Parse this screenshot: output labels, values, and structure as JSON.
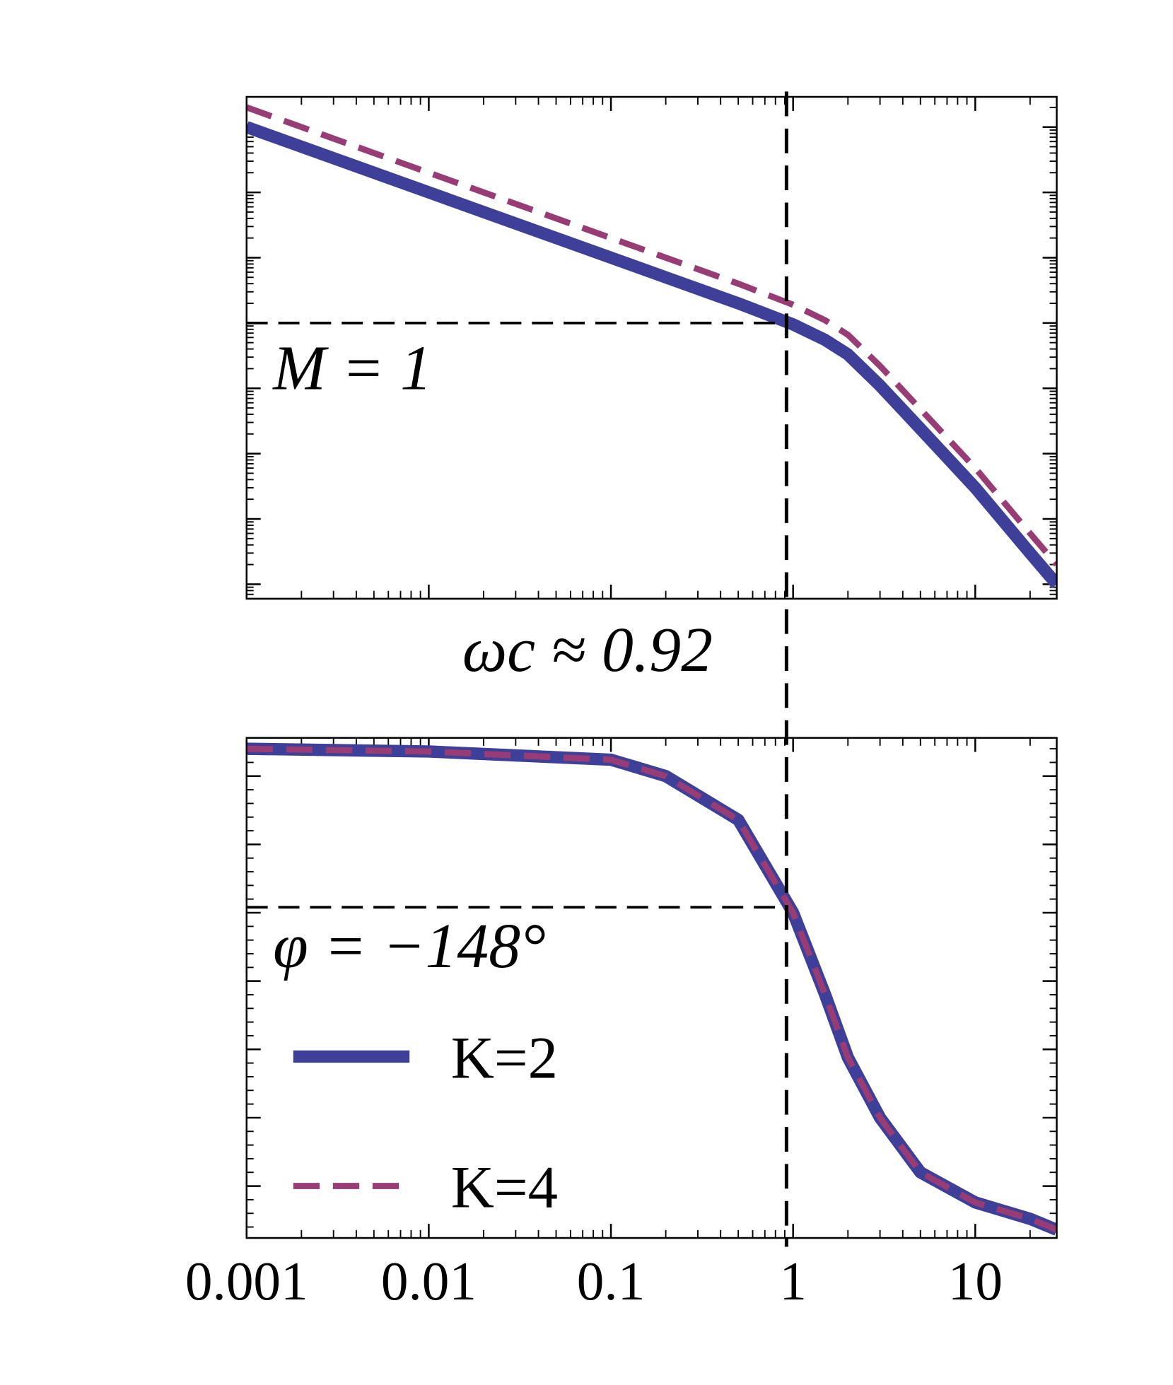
{
  "chart_data": [
    {
      "type": "line",
      "log_x": true,
      "log_y": true,
      "x": [
        0.001,
        0.01,
        0.1,
        0.2,
        0.5,
        1,
        1.5,
        2,
        3,
        5,
        10,
        20,
        28
      ],
      "xlim": [
        0.001,
        28
      ],
      "xticks": [
        0.001,
        0.01,
        0.1,
        1,
        10
      ],
      "ylim": [
        6e-05,
        2900
      ],
      "yticks": [
        0.0001,
        0.001,
        0.01,
        0.1,
        1,
        10,
        100,
        1000
      ],
      "series": [
        {
          "color": "#3e3f98",
          "style": "solid",
          "values": [
            1000,
            100,
            10,
            5,
            2,
            0.95,
            0.55,
            0.33,
            0.11,
            0.024,
            0.003,
            0.0003,
            0.0001
          ]
        },
        {
          "color": "#983c76",
          "style": "dashed",
          "values": [
            2000,
            200,
            20,
            10,
            4,
            1.9,
            1.1,
            0.66,
            0.22,
            0.048,
            0.006,
            0.0006,
            0.0002
          ]
        }
      ],
      "hline": 1,
      "annotation": "M = 1",
      "vline": 0.92,
      "vline_label": "ωc ≈ 0.92"
    },
    {
      "type": "line",
      "log_x": true,
      "log_y": false,
      "x": [
        0.001,
        0.01,
        0.1,
        0.2,
        0.5,
        1,
        1.5,
        2,
        3,
        5,
        10,
        20,
        28
      ],
      "xlim": [
        0.001,
        28
      ],
      "xticks": [
        0.001,
        0.01,
        0.1,
        1,
        10
      ],
      "ylim": [
        -269,
        -86
      ],
      "yticks": [
        -250,
        -225,
        -200,
        -175,
        -150,
        -125,
        -100
      ],
      "series": [
        {
          "name": "K=2",
          "color": "#3e3f98",
          "style": "solid",
          "values": [
            -90,
            -91,
            -94,
            -100,
            -116,
            -150,
            -180,
            -203,
            -225,
            -245,
            -256,
            -262,
            -266
          ]
        },
        {
          "name": "K=4",
          "color": "#983c76",
          "style": "dashed",
          "values": [
            -90,
            -91,
            -94,
            -100,
            -116,
            -150,
            -180,
            -203,
            -225,
            -245,
            -256,
            -262,
            -266
          ]
        }
      ],
      "hline": -148,
      "annotation": "φ = −148°",
      "legend": "lower left"
    }
  ]
}
